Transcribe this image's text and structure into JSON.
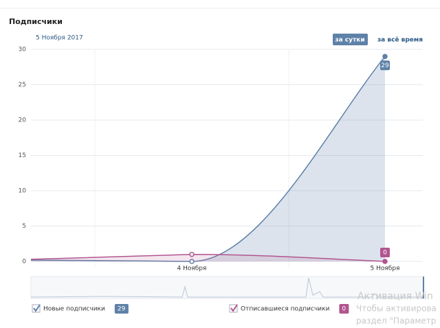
{
  "header": {
    "title": "Подписчики",
    "date": "5 Ноября 2017",
    "buttons": [
      "за сутки",
      "за всё время"
    ]
  },
  "chart_data": {
    "type": "line",
    "categories": [
      null,
      "4 Ноября",
      "5 Ноября"
    ],
    "series": [
      {
        "name": "Новые подписчики",
        "color": "#5e81a8",
        "values": [
          0.2,
          0,
          29
        ],
        "total": 29
      },
      {
        "name": "Отписавшиеся подписчики",
        "color": "#b2558f",
        "values": [
          0.3,
          1,
          0
        ],
        "total": 0
      }
    ],
    "ylim": [
      0,
      30
    ],
    "yticks": [
      0,
      5,
      10,
      15,
      20,
      25,
      30
    ],
    "grid": true
  },
  "watermark": [
    "Активация Win",
    "Чтобы активирова",
    "раздел \"Параметр"
  ]
}
